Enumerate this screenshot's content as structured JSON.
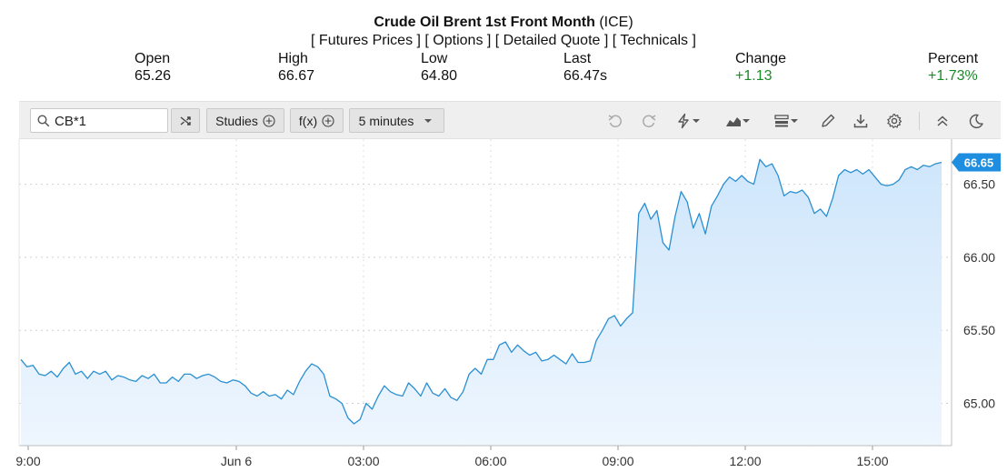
{
  "header": {
    "title_bold": "Crude Oil Brent 1st Front Month",
    "title_exchange": "(ICE)",
    "links": [
      "[ Futures Prices ]",
      "[ Options ]",
      "[ Detailed Quote ]",
      "[ Technicals ]"
    ]
  },
  "quote": {
    "open_label": "Open",
    "open": "65.26",
    "high_label": "High",
    "high": "66.67",
    "low_label": "Low",
    "low": "64.80",
    "last_label": "Last",
    "last": "66.47s",
    "change_label": "Change",
    "change": "+1.13",
    "percent_label": "Percent",
    "percent": "+1.73%"
  },
  "toolbar": {
    "symbol_value": "CB*1",
    "studies_label": "Studies",
    "fx_label": "f(x)",
    "interval_label": "5 minutes",
    "icons": [
      "compare-icon",
      "undo-icon",
      "redo-icon",
      "lightning-icon",
      "area-chart-icon",
      "bar-style-icon",
      "pencil-icon",
      "download-icon",
      "gear-icon",
      "collapse-icon",
      "dark-mode-icon"
    ]
  },
  "colors": {
    "line": "#2a8fd2",
    "fill_top": "#cfe6fb",
    "positive": "#1a8a2a",
    "price_tag": "#1f8ee0"
  },
  "chart_data": {
    "type": "area",
    "x_tick_labels": [
      "9:00",
      "Jun 6",
      "03:00",
      "06:00",
      "09:00",
      "12:00",
      "15:00"
    ],
    "y_tick_labels": [
      "65.00",
      "65.50",
      "66.00",
      "66.50"
    ],
    "last_price_label": "66.65",
    "ylim": [
      64.72,
      66.87
    ],
    "grid": true,
    "series": [
      {
        "values": [
          65.3,
          65.25,
          65.26,
          65.2,
          65.19,
          65.22,
          65.18,
          65.24,
          65.28,
          65.2,
          65.22,
          65.17,
          65.22,
          65.2,
          65.22,
          65.16,
          65.19,
          65.18,
          65.16,
          65.15,
          65.19,
          65.17,
          65.2,
          65.14,
          65.14,
          65.18,
          65.15,
          65.2,
          65.2,
          65.17,
          65.19,
          65.2,
          65.18,
          65.15,
          65.14,
          65.16,
          65.15,
          65.12,
          65.07,
          65.05,
          65.08,
          65.05,
          65.06,
          65.03,
          65.09,
          65.06,
          65.15,
          65.22,
          65.27,
          65.25,
          65.2,
          65.05,
          65.03,
          65.0,
          64.9,
          64.86,
          64.89,
          65.0,
          64.96,
          65.05,
          65.12,
          65.08,
          65.06,
          65.05,
          65.14,
          65.1,
          65.05,
          65.14,
          65.07,
          65.05,
          65.1,
          65.04,
          65.02,
          65.08,
          65.2,
          65.24,
          65.2,
          65.3,
          65.3,
          65.4,
          65.42,
          65.35,
          65.4,
          65.36,
          65.33,
          65.35,
          65.29,
          65.3,
          65.33,
          65.3,
          65.27,
          65.34,
          65.28,
          65.28,
          65.29,
          65.43,
          65.5,
          65.58,
          65.6,
          65.53,
          65.58,
          65.62,
          66.3,
          66.37,
          66.26,
          66.32,
          66.1,
          66.05,
          66.28,
          66.45,
          66.38,
          66.2,
          66.3,
          66.16,
          66.35,
          66.42,
          66.5,
          66.55,
          66.52,
          66.56,
          66.52,
          66.5,
          66.67,
          66.62,
          66.64,
          66.56,
          66.42,
          66.45,
          66.44,
          66.46,
          66.41,
          66.3,
          66.33,
          66.28,
          66.4,
          66.56,
          66.6,
          66.58,
          66.6,
          66.57,
          66.6,
          66.55,
          66.5,
          66.49,
          66.5,
          66.53,
          66.6,
          66.62,
          66.6,
          66.63,
          66.62,
          66.64,
          66.65
        ]
      }
    ]
  }
}
